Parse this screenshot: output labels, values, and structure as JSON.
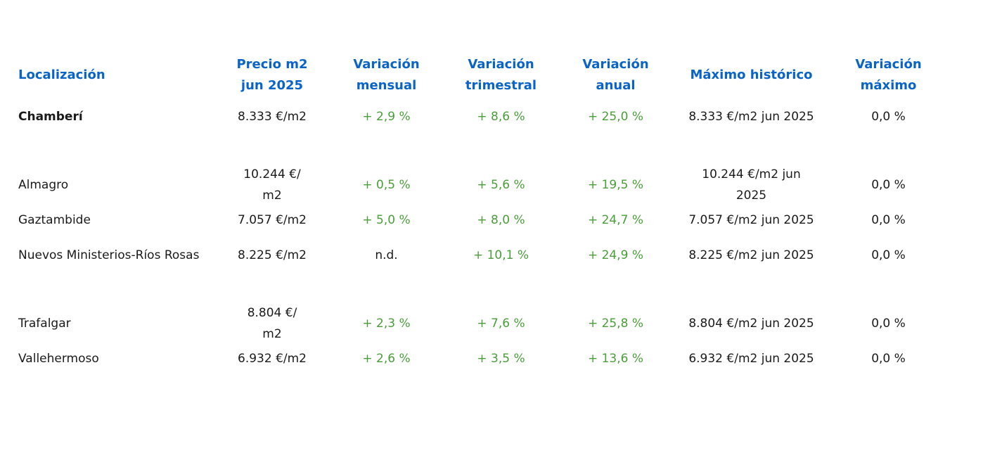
{
  "headers": {
    "localizacion": "Localización",
    "precio_line1": "Precio m2",
    "precio_line2": "jun 2025",
    "var_mensual_line1": "Variación",
    "var_mensual_line2": "mensual",
    "var_trimestral_line1": "Variación",
    "var_trimestral_line2": "trimestral",
    "var_anual_line1": "Variación",
    "var_anual_line2": "anual",
    "maximo": "Máximo histórico",
    "var_maximo_line1": "Variación",
    "var_maximo_line2": "máximo"
  },
  "rows": [
    {
      "localizacion": "Chamberí",
      "precio": "8.333 €/m2",
      "mensual": "+ 2,9 %",
      "trimestral": "+ 8,6 %",
      "anual": "+ 25,0 %",
      "maximo": "8.333 €/m2 jun 2025",
      "var_maximo": "0,0 %"
    },
    {
      "localizacion": "Almagro",
      "precio_line1": "10.244 €/",
      "precio_line2": "m2",
      "mensual": "+ 0,5 %",
      "trimestral": "+ 5,6 %",
      "anual": "+ 19,5 %",
      "maximo": "10.244 €/m2 jun 2025",
      "var_maximo": "0,0 %"
    },
    {
      "localizacion": "Gaztambide",
      "precio": "7.057 €/m2",
      "mensual": "+ 5,0 %",
      "trimestral": "+ 8,0 %",
      "anual": "+ 24,7 %",
      "maximo": "7.057 €/m2 jun 2025",
      "var_maximo": "0,0 %"
    },
    {
      "localizacion": "Nuevos Ministerios-Ríos Rosas",
      "precio": "8.225 €/m2",
      "mensual": "n.d.",
      "trimestral": "+ 10,1 %",
      "anual": "+ 24,9 %",
      "maximo": "8.225 €/m2 jun 2025",
      "var_maximo": "0,0 %"
    },
    {
      "localizacion": "Trafalgar",
      "precio_line1": "8.804 €/",
      "precio_line2": "m2",
      "mensual": "+ 2,3 %",
      "trimestral": "+ 7,6 %",
      "anual": "+ 25,8 %",
      "maximo": "8.804 €/m2 jun 2025",
      "var_maximo": "0,0 %"
    },
    {
      "localizacion": "Vallehermoso",
      "precio": "6.932 €/m2",
      "mensual": "+ 2,6 %",
      "trimestral": "+ 3,5 %",
      "anual": "+ 13,6 %",
      "maximo": "6.932 €/m2 jun 2025",
      "var_maximo": "0,0 %"
    }
  ],
  "colors": {
    "header": "#0a64c8",
    "positive": "#4a9e3a",
    "text": "#1a1a1a"
  }
}
